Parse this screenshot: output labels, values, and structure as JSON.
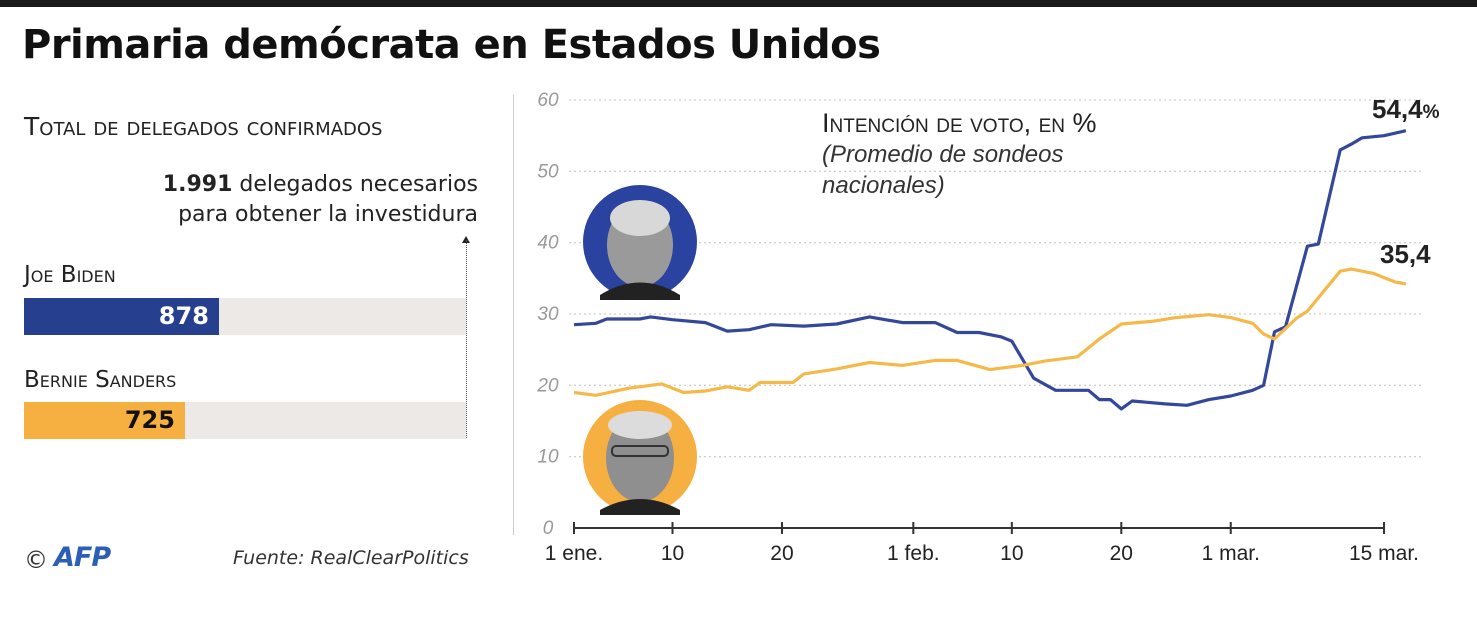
{
  "title": "Primaria demócrata en Estados Unidos",
  "delegates": {
    "heading": "Total de delegados confirmados",
    "needed_number": "1.991",
    "needed_text_1": "delegados necesarios",
    "needed_text_2": "para obtener la investidura",
    "needed_value": 1991,
    "candidates": [
      {
        "name": "Joe Biden",
        "value": 878,
        "label": "878",
        "color": "#263f8f"
      },
      {
        "name": "Bernie Sanders",
        "value": 725,
        "label": "725",
        "color": "#f5b041"
      }
    ]
  },
  "footer": {
    "copyright": "©",
    "logo": "AFP",
    "source": "Fuente: RealClearPolitics"
  },
  "chart_data": {
    "type": "line",
    "title": "Intención de voto, en %",
    "subtitle_1": "(Promedio de sondeos",
    "subtitle_2": "nacionales)",
    "ylim": [
      0,
      60
    ],
    "yticks": [
      "0",
      "10",
      "20",
      "30",
      "40",
      "50",
      "60"
    ],
    "xlim": [
      "01-01",
      "03-15"
    ],
    "xticks": [
      {
        "date": "01-01",
        "label": "1 ene."
      },
      {
        "date": "01-10",
        "label": "10"
      },
      {
        "date": "01-20",
        "label": "20"
      },
      {
        "date": "02-01",
        "label": "1 feb."
      },
      {
        "date": "02-10",
        "label": "10"
      },
      {
        "date": "02-20",
        "label": "20"
      },
      {
        "date": "03-01",
        "label": "1 mar."
      },
      {
        "date": "03-15",
        "label": "15 mar."
      }
    ],
    "grid": true,
    "series": [
      {
        "candidate": "Joe Biden",
        "color": "#34489a",
        "end_label": "54,4",
        "end_unit": "%",
        "points": [
          [
            "01-01",
            28.5
          ],
          [
            "01-03",
            28.7
          ],
          [
            "01-04",
            29.3
          ],
          [
            "01-07",
            29.3
          ],
          [
            "01-08",
            29.6
          ],
          [
            "01-10",
            29.2
          ],
          [
            "01-13",
            28.8
          ],
          [
            "01-15",
            27.6
          ],
          [
            "01-17",
            27.8
          ],
          [
            "01-19",
            28.5
          ],
          [
            "01-22",
            28.3
          ],
          [
            "01-25",
            28.6
          ],
          [
            "01-28",
            29.6
          ],
          [
            "01-31",
            28.8
          ],
          [
            "02-03",
            28.8
          ],
          [
            "02-05",
            27.4
          ],
          [
            "02-07",
            27.4
          ],
          [
            "02-09",
            26.8
          ],
          [
            "02-10",
            26.2
          ],
          [
            "02-12",
            21
          ],
          [
            "02-14",
            19.3
          ],
          [
            "02-17",
            19.3
          ],
          [
            "02-18",
            18
          ],
          [
            "02-19",
            18
          ],
          [
            "02-20",
            16.7
          ],
          [
            "02-21",
            17.8
          ],
          [
            "02-24",
            17.4
          ],
          [
            "02-26",
            17.2
          ],
          [
            "02-28",
            18
          ],
          [
            "03-01",
            18.5
          ],
          [
            "03-03",
            19.3
          ],
          [
            "03-04",
            20
          ],
          [
            "03-05",
            27.5
          ],
          [
            "03-06",
            28.2
          ],
          [
            "03-08",
            39.5
          ],
          [
            "03-09",
            39.8
          ],
          [
            "03-11",
            53
          ],
          [
            "03-12",
            53.8
          ],
          [
            "03-13",
            54.7
          ],
          [
            "03-15",
            55
          ],
          [
            "03-17",
            55.7
          ]
        ]
      },
      {
        "candidate": "Bernie Sanders",
        "color": "#f5b94a",
        "end_label": "35,4",
        "points": [
          [
            "01-01",
            19
          ],
          [
            "01-03",
            18.6
          ],
          [
            "01-06",
            19.6
          ],
          [
            "01-09",
            20.2
          ],
          [
            "01-11",
            19
          ],
          [
            "01-13",
            19.2
          ],
          [
            "01-15",
            19.8
          ],
          [
            "01-17",
            19.3
          ],
          [
            "01-18",
            20.4
          ],
          [
            "01-21",
            20.4
          ],
          [
            "01-22",
            21.6
          ],
          [
            "01-25",
            22.3
          ],
          [
            "01-28",
            23.2
          ],
          [
            "01-31",
            22.8
          ],
          [
            "02-03",
            23.5
          ],
          [
            "02-05",
            23.5
          ],
          [
            "02-08",
            22.2
          ],
          [
            "02-11",
            22.8
          ],
          [
            "02-13",
            23.4
          ],
          [
            "02-16",
            24
          ],
          [
            "02-18",
            26.5
          ],
          [
            "02-20",
            28.6
          ],
          [
            "02-23",
            29
          ],
          [
            "02-25",
            29.5
          ],
          [
            "02-28",
            29.9
          ],
          [
            "03-01",
            29.5
          ],
          [
            "03-03",
            28.7
          ],
          [
            "03-04",
            27.2
          ],
          [
            "03-05",
            26.5
          ],
          [
            "03-07",
            29.4
          ],
          [
            "03-08",
            30.4
          ],
          [
            "03-11",
            36
          ],
          [
            "03-12",
            36.3
          ],
          [
            "03-14",
            35.7
          ],
          [
            "03-16",
            34.5
          ],
          [
            "03-17",
            34.2
          ]
        ]
      }
    ]
  }
}
